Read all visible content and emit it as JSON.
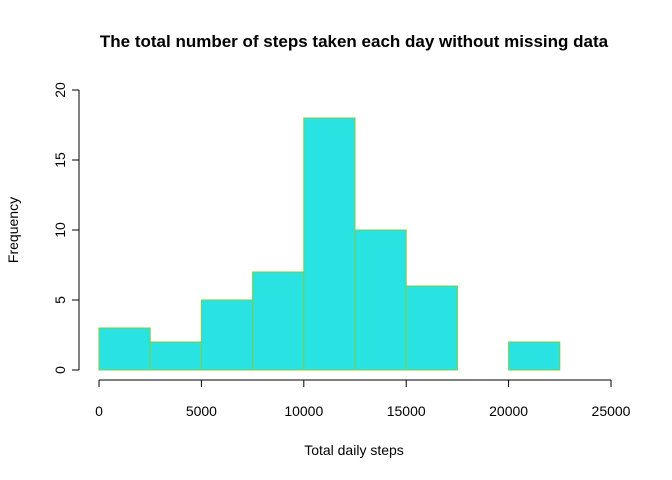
{
  "chart_data": {
    "type": "bar",
    "title": "The total number of steps taken each day without missing data",
    "xlabel": "Total daily steps",
    "ylabel": "Frequency",
    "bin_edges": [
      0,
      2500,
      5000,
      7500,
      10000,
      12500,
      15000,
      17500,
      20000,
      22500,
      25000
    ],
    "values": [
      3,
      2,
      5,
      7,
      18,
      10,
      6,
      0,
      2,
      0
    ],
    "xlim": [
      0,
      25000
    ],
    "ylim": [
      0,
      20
    ],
    "x_ticks": [
      0,
      5000,
      10000,
      15000,
      20000,
      25000
    ],
    "y_ticks": [
      0,
      5,
      10,
      15,
      20
    ],
    "grid": false,
    "legend": "none",
    "bar_fill_color": "#29e3e3",
    "bar_border_color": "#7ccd44"
  }
}
